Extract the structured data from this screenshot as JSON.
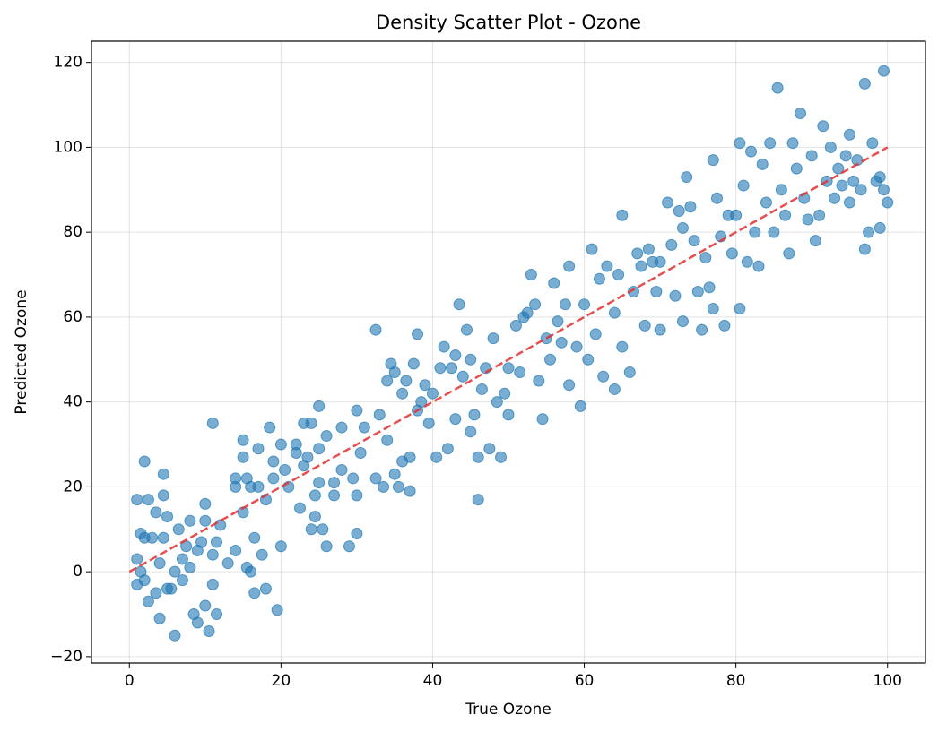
{
  "chart_data": {
    "type": "scatter",
    "title": "Density Scatter Plot - Ozone",
    "x_label": "True Ozone",
    "y_label": "Predicted Ozone",
    "color": "#1f77b4",
    "grid": true,
    "xlim": [
      -5,
      105
    ],
    "ylim": [
      -21.5,
      125
    ],
    "xticks": [
      0,
      20,
      40,
      60,
      80,
      100
    ],
    "yticks": [
      {
        "value": -20,
        "label": "−20"
      },
      0,
      20,
      40,
      60,
      80,
      100,
      120
    ],
    "reference_line": {
      "x": [
        0,
        100
      ],
      "y": [
        0,
        100
      ],
      "color": "#e03030",
      "style": "dashed"
    },
    "x": [
      1,
      1,
      1,
      1.5,
      1.5,
      2,
      2,
      2,
      2.5,
      2.5,
      3,
      3.5,
      3.5,
      4,
      4,
      4.5,
      4.5,
      4.5,
      5,
      5,
      5.5,
      6,
      6,
      6.5,
      7,
      7,
      7.5,
      8,
      8,
      8.5,
      9,
      9,
      9.5,
      10,
      10,
      10,
      10.5,
      11,
      11,
      11,
      11.5,
      11.5,
      12,
      13,
      14,
      14,
      14,
      15,
      15,
      15,
      15.5,
      15.5,
      16,
      16,
      16.5,
      16.5,
      17,
      17,
      17.5,
      18,
      18,
      18.5,
      19,
      19,
      19.5,
      20,
      20,
      20.5,
      21,
      22,
      22,
      22.5,
      23,
      23,
      23.5,
      24,
      24,
      24.5,
      24.5,
      25,
      25,
      25,
      25.5,
      26,
      26,
      27,
      27,
      28,
      28,
      29,
      29.5,
      30,
      30,
      30,
      30.5,
      31,
      32.5,
      32.5,
      33,
      33.5,
      34,
      34,
      34.5,
      35,
      35,
      35.5,
      36,
      36,
      36.5,
      37,
      37,
      37.5,
      38,
      38,
      38.5,
      39,
      39.5,
      40,
      40.5,
      41,
      41.5,
      42,
      42.5,
      43,
      43,
      43.5,
      44,
      44.5,
      45,
      45,
      45.5,
      46,
      46,
      46.5,
      47,
      47.5,
      48,
      48.5,
      49,
      49.5,
      50,
      50,
      51,
      51.5,
      52,
      52.5,
      53,
      53.5,
      54,
      54.5,
      55,
      55.5,
      56,
      56.5,
      57,
      57.5,
      58,
      58,
      59,
      59.5,
      60,
      60.5,
      61,
      61.5,
      62,
      62.5,
      63,
      64,
      64,
      64.5,
      65,
      65,
      66,
      66.5,
      67,
      67.5,
      68,
      68.5,
      69,
      69.5,
      70,
      70,
      71,
      71.5,
      72,
      72.5,
      73,
      73,
      73.5,
      74,
      74.5,
      75,
      75.5,
      76,
      76.5,
      77,
      77,
      77.5,
      78,
      78.5,
      79,
      79.5,
      80,
      80.5,
      80.5,
      81,
      81.5,
      82,
      82.5,
      83,
      83.5,
      84,
      84.5,
      85,
      85.5,
      86,
      86.5,
      87,
      87.5,
      88,
      88.5,
      89,
      89.5,
      90,
      90.5,
      91,
      91.5,
      92,
      92.5,
      93,
      93.5,
      94,
      94.5,
      95,
      95,
      95.5,
      96,
      96.5,
      97,
      97,
      97.5,
      98,
      98.5,
      99,
      99,
      99.5,
      99.5,
      100
    ],
    "values": [
      17,
      3,
      -3,
      0,
      9,
      -2,
      26,
      8,
      17,
      -7,
      8,
      14,
      -5,
      2,
      -11,
      23,
      18,
      8,
      -4,
      13,
      -4,
      -15,
      0,
      10,
      3,
      -2,
      6,
      12,
      1,
      -10,
      -12,
      5,
      7,
      16,
      -8,
      12,
      -14,
      35,
      4,
      -3,
      -10,
      7,
      11,
      2,
      22,
      5,
      20,
      31,
      27,
      14,
      22,
      1,
      0,
      20,
      -5,
      8,
      29,
      20,
      4,
      17,
      -4,
      34,
      26,
      22,
      -9,
      30,
      6,
      24,
      20,
      28,
      30,
      15,
      35,
      25,
      27,
      10,
      35,
      18,
      13,
      39,
      21,
      29,
      10,
      6,
      32,
      18,
      21,
      34,
      24,
      6,
      22,
      38,
      18,
      9,
      28,
      34,
      57,
      22,
      37,
      20,
      31,
      45,
      49,
      47,
      23,
      20,
      42,
      26,
      45,
      19,
      27,
      49,
      56,
      38,
      40,
      44,
      35,
      42,
      27,
      48,
      53,
      29,
      48,
      36,
      51,
      63,
      46,
      57,
      33,
      50,
      37,
      17,
      27,
      43,
      48,
      29,
      55,
      40,
      27,
      42,
      37,
      48,
      58,
      47,
      60,
      61,
      70,
      63,
      45,
      36,
      55,
      50,
      68,
      59,
      54,
      63,
      72,
      44,
      53,
      39,
      63,
      50,
      76,
      56,
      69,
      46,
      72,
      43,
      61,
      70,
      84,
      53,
      47,
      66,
      75,
      72,
      58,
      76,
      73,
      66,
      57,
      73,
      87,
      77,
      65,
      85,
      59,
      81,
      93,
      86,
      78,
      66,
      57,
      74,
      67,
      97,
      62,
      88,
      79,
      58,
      84,
      75,
      84,
      101,
      62,
      91,
      73,
      99,
      80,
      72,
      96,
      87,
      101,
      80,
      114,
      90,
      84,
      75,
      101,
      95,
      108,
      88,
      83,
      98,
      78,
      84,
      105,
      92,
      100,
      88,
      95,
      91,
      98,
      87,
      103,
      92,
      97,
      90,
      115,
      76,
      80,
      101,
      92,
      81,
      93,
      118,
      90,
      87
    ]
  }
}
